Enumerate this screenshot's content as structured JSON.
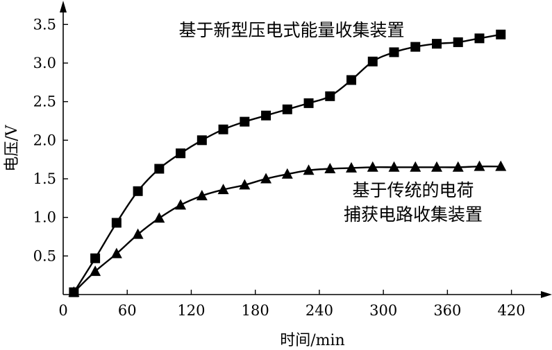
{
  "chart_data": {
    "type": "line",
    "title": "",
    "xlabel": "时间/min",
    "ylabel": "电压/V",
    "xlim": [
      0,
      420
    ],
    "ylim": [
      0,
      3.5
    ],
    "xticks": [
      0,
      60,
      120,
      180,
      240,
      300,
      360,
      420
    ],
    "xtick_labels": [
      "0",
      "60",
      "120",
      "180",
      "240",
      "300",
      "360",
      "420"
    ],
    "yticks": [
      0.5,
      1.0,
      1.5,
      2.0,
      2.5,
      3.0,
      3.5
    ],
    "ytick_labels": [
      "0.5",
      "1.0",
      "1.5",
      "2.0",
      "2.5",
      "3.0",
      "3.5"
    ],
    "grid": false,
    "legend": "none",
    "series": [
      {
        "marker": "square",
        "x": [
          10,
          30,
          50,
          70,
          90,
          110,
          130,
          150,
          170,
          190,
          210,
          230,
          250,
          270,
          290,
          310,
          330,
          350,
          370,
          390,
          410
        ],
        "y": [
          0.03,
          0.47,
          0.93,
          1.34,
          1.63,
          1.83,
          2.0,
          2.14,
          2.24,
          2.32,
          2.4,
          2.48,
          2.57,
          2.78,
          3.02,
          3.14,
          3.21,
          3.25,
          3.27,
          3.32,
          3.37
        ]
      },
      {
        "marker": "triangle",
        "x": [
          10,
          30,
          50,
          70,
          90,
          110,
          130,
          150,
          170,
          190,
          210,
          230,
          250,
          270,
          290,
          310,
          330,
          350,
          370,
          390,
          410
        ],
        "y": [
          0.03,
          0.3,
          0.53,
          0.78,
          0.99,
          1.16,
          1.28,
          1.36,
          1.42,
          1.5,
          1.56,
          1.61,
          1.63,
          1.64,
          1.65,
          1.65,
          1.65,
          1.65,
          1.65,
          1.66,
          1.66
        ]
      }
    ],
    "annotations": [
      {
        "text_lines": [
          "基于新型压电式能量收集装置"
        ]
      },
      {
        "text_lines": [
          "基于传统的电荷",
          "捕获电路收集装置"
        ]
      }
    ]
  }
}
